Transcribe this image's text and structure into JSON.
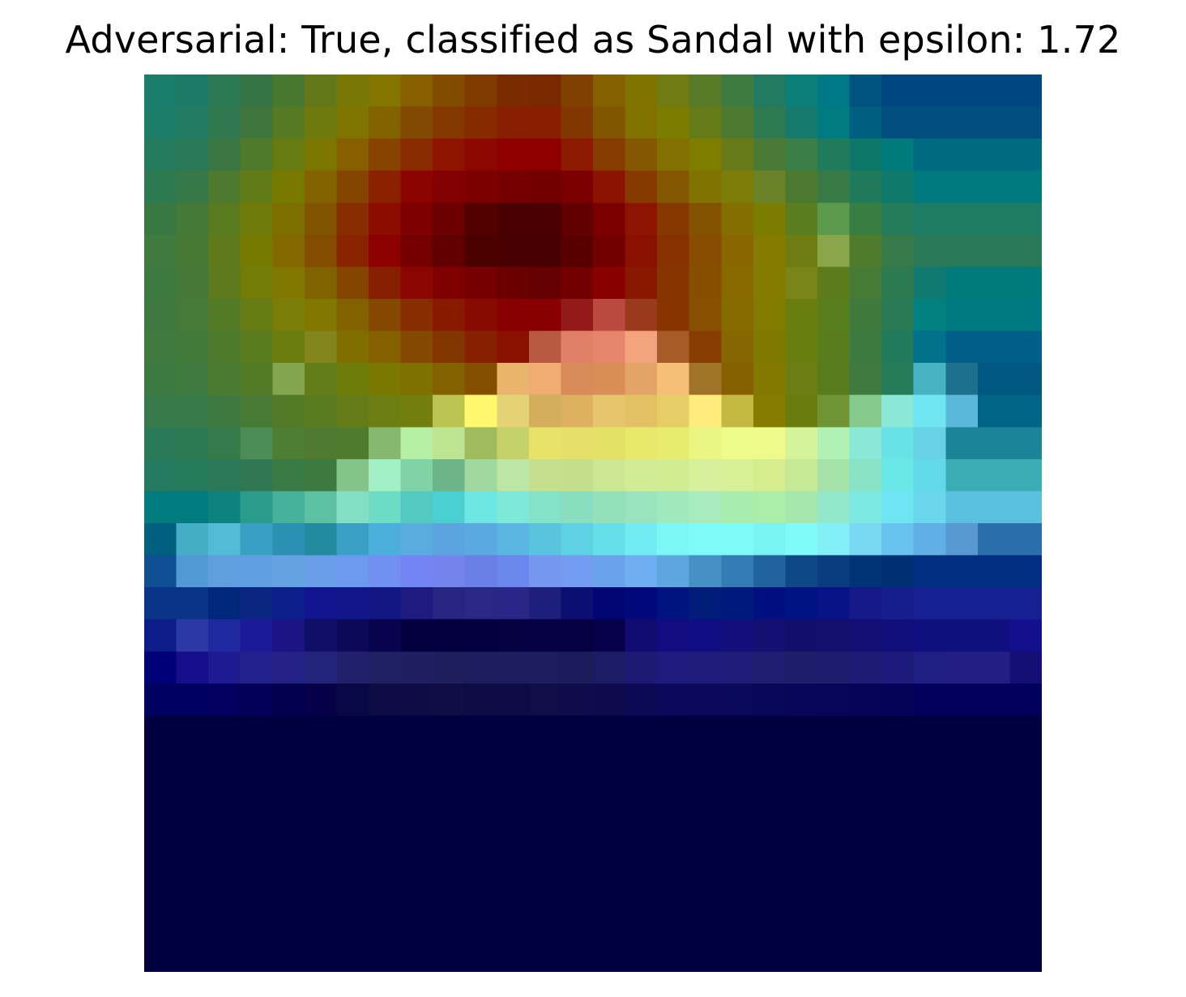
{
  "chart_data": {
    "type": "heatmap",
    "title": "Adversarial: True, classified as Sandal with epsilon: 1.72",
    "colormap": "jet",
    "overlay": true,
    "axes": "off",
    "rows": 28,
    "cols": 28,
    "pixels": [
      [
        "#1a7c6b",
        "#1d7a67",
        "#2c7853",
        "#347445",
        "#48782f",
        "#627718",
        "#787807",
        "#837500",
        "#865f00",
        "#824c00",
        "#7e3a00",
        "#7b2b00",
        "#7a2800",
        "#804000",
        "#846000",
        "#807300",
        "#707b12",
        "#577b28",
        "#3e7b40",
        "#227a60",
        "#0d7f79",
        "#007886",
        "#00537e",
        "#004680",
        "#004680",
        "#004680",
        "#004680",
        "#004680"
      ],
      [
        "#1c7d69",
        "#227b62",
        "#307850",
        "#3f763b",
        "#557a22",
        "#6e7a0e",
        "#7e7600",
        "#826300",
        "#824a00",
        "#843800",
        "#862b00",
        "#881f00",
        "#882000",
        "#833700",
        "#815600",
        "#817200",
        "#7a7d00",
        "#647c18",
        "#4d7a2f",
        "#2e7b52",
        "#157a6b",
        "#007c80",
        "#005e80",
        "#004d80",
        "#004d80",
        "#004d80",
        "#004d80",
        "#004d80"
      ],
      [
        "#247a5c",
        "#297856",
        "#3c7642",
        "#4e7a2a",
        "#687b13",
        "#7b7700",
        "#865f00",
        "#864400",
        "#8a2a00",
        "#8e1400",
        "#8c0800",
        "#8e0000",
        "#8e0000",
        "#8b1a00",
        "#863c00",
        "#845800",
        "#827100",
        "#7d7d00",
        "#687a18",
        "#4a7a35",
        "#3c7e48",
        "#207b5c",
        "#0e7868",
        "#007a7a",
        "#006a80",
        "#006a80",
        "#006a80",
        "#006a80"
      ],
      [
        "#2d7950",
        "#367848",
        "#4d7a2f",
        "#617b17",
        "#787a00",
        "#826300",
        "#854400",
        "#8a2200",
        "#8c0400",
        "#820000",
        "#7c0000",
        "#760000",
        "#720000",
        "#7c0000",
        "#8a1400",
        "#873a00",
        "#855600",
        "#807300",
        "#7b7d08",
        "#6a8228",
        "#4b7a2f",
        "#387a45",
        "#1f7a5c",
        "#0f7a6b",
        "#007a7c",
        "#007a7c",
        "#007a7c",
        "#007a7c"
      ],
      [
        "#3a7842",
        "#457937",
        "#5a7a1f",
        "#717b0c",
        "#7d6e00",
        "#815300",
        "#862e00",
        "#8c0c00",
        "#7e0000",
        "#6c0000",
        "#520000",
        "#4a0000",
        "#4a0000",
        "#600000",
        "#7a0000",
        "#8c1400",
        "#873700",
        "#835200",
        "#836e00",
        "#7a7d00",
        "#5b7d22",
        "#5c9a4e",
        "#3a7d42",
        "#257c5b",
        "#1e7c64",
        "#1e7c64",
        "#1e7c64",
        "#1e7c64"
      ],
      [
        "#3f7a3e",
        "#477935",
        "#5e7a1b",
        "#777a00",
        "#836900",
        "#844c00",
        "#882400",
        "#8c0000",
        "#740000",
        "#600000",
        "#4c0000",
        "#480000",
        "#480000",
        "#580000",
        "#720000",
        "#8a1000",
        "#873000",
        "#874d00",
        "#8a6600",
        "#857b00",
        "#6e7d12",
        "#8aa64a",
        "#4e7c2c",
        "#357a48",
        "#287a57",
        "#287a57",
        "#287a57",
        "#287a57"
      ],
      [
        "#3d7a40",
        "#477936",
        "#5d7a1c",
        "#747c08",
        "#807800",
        "#806200",
        "#854400",
        "#872000",
        "#8a0600",
        "#800000",
        "#760000",
        "#6a0000",
        "#660000",
        "#720000",
        "#8a0000",
        "#881800",
        "#873400",
        "#864f00",
        "#886900",
        "#837c00",
        "#7a8418",
        "#5c7c1c",
        "#467b36",
        "#2e7a50",
        "#107a70",
        "#007a7a",
        "#007a7a",
        "#007a7a"
      ],
      [
        "#3e7a3f",
        "#457a38",
        "#527a27",
        "#657b14",
        "#7a7e06",
        "#807800",
        "#846100",
        "#854800",
        "#862e00",
        "#881a00",
        "#880a00",
        "#8a0000",
        "#8a0000",
        "#941a1a",
        "#bb4a3e",
        "#9a3a1c",
        "#873500",
        "#865000",
        "#866c00",
        "#817c00",
        "#6a7e10",
        "#587e1e",
        "#3f7a3c",
        "#287a55",
        "#00807e",
        "#007a80",
        "#007a80",
        "#007a80"
      ],
      [
        "#3f7a3e",
        "#427a3b",
        "#4e7a2b",
        "#5a7b1f",
        "#6c7d10",
        "#82841c",
        "#806f00",
        "#846000",
        "#844900",
        "#833600",
        "#862100",
        "#8a1000",
        "#b85a42",
        "#e27f68",
        "#e6856a",
        "#f3a47c",
        "#a75c28",
        "#873e00",
        "#866600",
        "#807900",
        "#6a7e10",
        "#587c1e",
        "#3d7a3f",
        "#217a5c",
        "#00728a",
        "#005f88",
        "#005f88",
        "#005f88"
      ],
      [
        "#3c7a42",
        "#3f7a3e",
        "#4a7a30",
        "#527a27",
        "#84a44e",
        "#627c18",
        "#6e7c0a",
        "#7a7800",
        "#807000",
        "#826100",
        "#845000",
        "#e9b46c",
        "#f1ac73",
        "#d88a58",
        "#d98e57",
        "#e2a468",
        "#f6bf78",
        "#a07428",
        "#856000",
        "#837800",
        "#6c7d12",
        "#587b1e",
        "#3f7a3e",
        "#257c58",
        "#47b3c3",
        "#1d6f8e",
        "#005880",
        "#005880"
      ],
      [
        "#357a48",
        "#38794a",
        "#3e7a3f",
        "#467a35",
        "#527a27",
        "#5a7b1f",
        "#647c17",
        "#6c7e12",
        "#747e0e",
        "#bcc451",
        "#fff76e",
        "#e5d274",
        "#d4ae5c",
        "#ddb160",
        "#e7c56c",
        "#e4c064",
        "#e6cd66",
        "#ffec7d",
        "#c3b842",
        "#857c00",
        "#6a7c0e",
        "#6e9436",
        "#86c98c",
        "#8ae9d6",
        "#70e5f2",
        "#5ab9da",
        "#006486",
        "#006486"
      ],
      [
        "#2a7a58",
        "#2d7a52",
        "#357a4a",
        "#4d8c56",
        "#4d7e34",
        "#4e7b30",
        "#4f7b2e",
        "#86b872",
        "#b5eea4",
        "#bde591",
        "#a0bb5c",
        "#c5d26a",
        "#e9e26a",
        "#e6e06a",
        "#e5e066",
        "#e8e86b",
        "#e7eb70",
        "#ebf582",
        "#edfb8a",
        "#eefb8c",
        "#d4f39a",
        "#aff2b4",
        "#8ae9d6",
        "#67e3e6",
        "#68d2e4",
        "#1b8496",
        "#1b8496",
        "#1b8496"
      ],
      [
        "#247b60",
        "#267b5d",
        "#2a7856",
        "#2f7852",
        "#3a7a44",
        "#3c7a40",
        "#84c488",
        "#a3f0c6",
        "#7fd3a6",
        "#6bb589",
        "#a0d89e",
        "#bbe6a3",
        "#c4df8e",
        "#c3df8a",
        "#cce792",
        "#d0ec94",
        "#d2ec94",
        "#d6f09b",
        "#d7f097",
        "#d6ed8e",
        "#c5e994",
        "#a5e2a7",
        "#88e4c5",
        "#6ae7e7",
        "#62d9e8",
        "#3cadb5",
        "#3cadb5",
        "#3cadb5"
      ],
      [
        "#007b7e",
        "#007b7e",
        "#0d8380",
        "#2b9b8d",
        "#46b29b",
        "#5cc0a3",
        "#82dfc4",
        "#6edbc4",
        "#52c9c1",
        "#4ccfd1",
        "#6ee6e2",
        "#7ee8d9",
        "#82e3c9",
        "#8adec0",
        "#93e0ba",
        "#99e4bc",
        "#a0e8bd",
        "#a8ecbd",
        "#a8ecb0",
        "#abeea9",
        "#a5e7ad",
        "#93e7cb",
        "#7ee9e3",
        "#6fe5f3",
        "#6ad7ed",
        "#5bbfde",
        "#5bbfde",
        "#5bbfde"
      ],
      [
        "#006080",
        "#44aec7",
        "#53bbd6",
        "#3aa0c3",
        "#2b90b1",
        "#238aa0",
        "#3ba0c6",
        "#4caedb",
        "#58acde",
        "#5ba4e0",
        "#5aa9e1",
        "#5ab6e0",
        "#5ac4de",
        "#5ed1e4",
        "#67dfeb",
        "#72ecf2",
        "#7df7f5",
        "#80fbf7",
        "#80faf7",
        "#7af3f3",
        "#80fbfa",
        "#83f0f7",
        "#79d9f3",
        "#69c2f0",
        "#60afe5",
        "#5999d2",
        "#2a6fab",
        "#2a6fab"
      ],
      [
        "#114f94",
        "#5399d8",
        "#5f9fe0",
        "#60a0e2",
        "#65a2e4",
        "#6a9fe8",
        "#6b9aee",
        "#7090f2",
        "#7285f2",
        "#7483ee",
        "#6a80e6",
        "#6b86ec",
        "#7498f0",
        "#739bf0",
        "#6ba2ec",
        "#6eaef1",
        "#5ea6e0",
        "#4790c5",
        "#347ab5",
        "#21639e",
        "#0e4885",
        "#093d80",
        "#003377",
        "#002f76",
        "#002e80",
        "#002e80",
        "#002e80",
        "#002e80"
      ],
      [
        "#093488",
        "#0a3486",
        "#00287a",
        "#0a2682",
        "#0c1f8a",
        "#10148f",
        "#11168a",
        "#111784",
        "#1d1a80",
        "#272581",
        "#292886",
        "#282686",
        "#1e1e7c",
        "#0c0f72",
        "#000674",
        "#00087a",
        "#001480",
        "#001d7a",
        "#001a7c",
        "#000f80",
        "#001382",
        "#0a1288",
        "#141a8a",
        "#161e8e",
        "#162090",
        "#162090",
        "#162090",
        "#162090"
      ],
      [
        "#0c1c88",
        "#2b38a6",
        "#2028a0",
        "#1c1a98",
        "#1c1384",
        "#0e0e66",
        "#0c0a58",
        "#07034f",
        "#03003f",
        "#02003f",
        "#03003f",
        "#040140",
        "#050043",
        "#050042",
        "#07004a",
        "#110c72",
        "#110c80",
        "#100d82",
        "#120f7a",
        "#131071",
        "#120f6c",
        "#12106d",
        "#110f74",
        "#100f79",
        "#100f80",
        "#100f80",
        "#100f80",
        "#140f8c"
      ],
      [
        "#000078",
        "#140e8c",
        "#1e1a90",
        "#22208a",
        "#242186",
        "#22237a",
        "#20206d",
        "#1f1f64",
        "#1e1e60",
        "#1e1e5d",
        "#1d1c5d",
        "#1d1c5c",
        "#1d1d5e",
        "#1c1c5c",
        "#1c1b66",
        "#1c1a73",
        "#1d1c7c",
        "#1d1c7a",
        "#1e1c76",
        "#1e1d70",
        "#1d1d6c",
        "#1d1c6d",
        "#1d1b74",
        "#1c1b7c",
        "#1f1e82",
        "#211f86",
        "#211f86",
        "#140f75"
      ],
      [
        "#000060",
        "#000060",
        "#010060",
        "#020058",
        "#02004f",
        "#060049",
        "#090847",
        "#0c0b46",
        "#0e0c44",
        "#100d45",
        "#0d0b44",
        "#0d0a48",
        "#0f0d4a",
        "#0e0c4a",
        "#0d0b4d",
        "#0d0a55",
        "#0c095a",
        "#0b085a",
        "#0a085a",
        "#08075a",
        "#07065a",
        "#06055a",
        "#050459",
        "#04035a",
        "#00005c",
        "#00005c",
        "#00005c",
        "#00005c"
      ],
      [
        "#000040",
        "#000040",
        "#000040",
        "#000040",
        "#000040",
        "#000040",
        "#000040",
        "#000040",
        "#000040",
        "#000040",
        "#000040",
        "#000040",
        "#000040",
        "#000040",
        "#000040",
        "#000040",
        "#000040",
        "#000040",
        "#000040",
        "#000040",
        "#000040",
        "#000040",
        "#000040",
        "#000040",
        "#000040",
        "#000040",
        "#000040",
        "#000040"
      ],
      [
        "#000040",
        "#000040",
        "#000040",
        "#000040",
        "#000040",
        "#000040",
        "#000040",
        "#000040",
        "#000040",
        "#000040",
        "#000040",
        "#000040",
        "#000040",
        "#000040",
        "#000040",
        "#000040",
        "#000040",
        "#000040",
        "#000040",
        "#000040",
        "#000040",
        "#000040",
        "#000040",
        "#000040",
        "#000040",
        "#000040",
        "#000040",
        "#000040"
      ],
      [
        "#000040",
        "#000040",
        "#000040",
        "#000040",
        "#000040",
        "#000040",
        "#000040",
        "#000040",
        "#000040",
        "#000040",
        "#000040",
        "#000040",
        "#000040",
        "#000040",
        "#000040",
        "#000040",
        "#000040",
        "#000040",
        "#000040",
        "#000040",
        "#000040",
        "#000040",
        "#000040",
        "#000040",
        "#000040",
        "#000040",
        "#000040",
        "#000040"
      ],
      [
        "#000040",
        "#000040",
        "#000040",
        "#000040",
        "#000040",
        "#000040",
        "#000040",
        "#000040",
        "#000040",
        "#000040",
        "#000040",
        "#000040",
        "#000040",
        "#000040",
        "#000040",
        "#000040",
        "#000040",
        "#000040",
        "#000040",
        "#000040",
        "#000040",
        "#000040",
        "#000040",
        "#000040",
        "#000040",
        "#000040",
        "#000040",
        "#000040"
      ],
      [
        "#000040",
        "#000040",
        "#000040",
        "#000040",
        "#000040",
        "#000040",
        "#000040",
        "#000040",
        "#000040",
        "#000040",
        "#000040",
        "#000040",
        "#000040",
        "#000040",
        "#000040",
        "#000040",
        "#000040",
        "#000040",
        "#000040",
        "#000040",
        "#000040",
        "#000040",
        "#000040",
        "#000040",
        "#000040",
        "#000040",
        "#000040",
        "#000040"
      ],
      [
        "#000040",
        "#000040",
        "#000040",
        "#000040",
        "#000040",
        "#000040",
        "#000040",
        "#000040",
        "#000040",
        "#000040",
        "#000040",
        "#000040",
        "#000040",
        "#000040",
        "#000040",
        "#000040",
        "#000040",
        "#000040",
        "#000040",
        "#000040",
        "#000040",
        "#000040",
        "#000040",
        "#000040",
        "#000040",
        "#000040",
        "#000040",
        "#000040"
      ],
      [
        "#000040",
        "#000040",
        "#000040",
        "#000040",
        "#000040",
        "#000040",
        "#000040",
        "#000040",
        "#000040",
        "#000040",
        "#000040",
        "#000040",
        "#000040",
        "#000040",
        "#000040",
        "#000040",
        "#000040",
        "#000040",
        "#000040",
        "#000040",
        "#000040",
        "#000040",
        "#000040",
        "#000040",
        "#000040",
        "#000040",
        "#000040",
        "#000040"
      ],
      [
        "#000040",
        "#000040",
        "#000040",
        "#000040",
        "#000040",
        "#000040",
        "#000040",
        "#000040",
        "#000040",
        "#000040",
        "#000040",
        "#000040",
        "#000040",
        "#000040",
        "#000040",
        "#000040",
        "#000040",
        "#000040",
        "#000040",
        "#000040",
        "#000040",
        "#000040",
        "#000040",
        "#000040",
        "#000040",
        "#000040",
        "#000040",
        "#000040"
      ]
    ]
  }
}
